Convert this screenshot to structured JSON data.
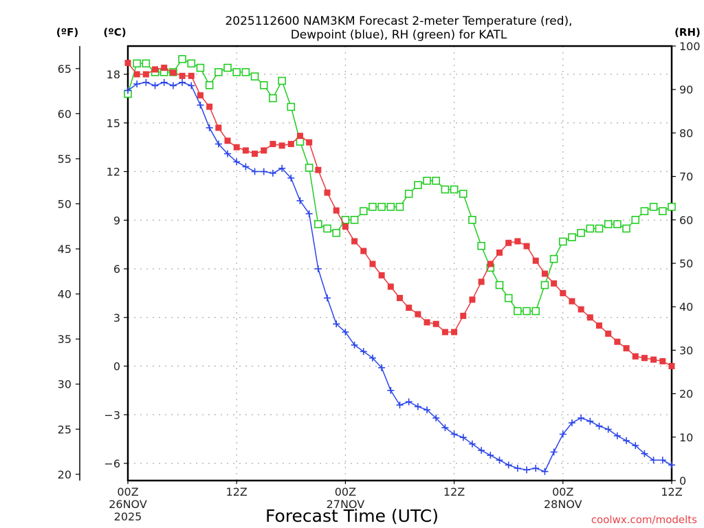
{
  "chart_data": {
    "type": "line",
    "title_line1": "2025112600 NAM3KM Forecast 2-meter Temperature (red),",
    "title_line2": "Dewpoint (blue), RH (green) for KATL",
    "xlabel": "Forecast Time (UTC)",
    "credit": "coolwx.com/modelts",
    "units": {
      "fahrenheit": "(ºF)",
      "celsius": "(ºC)",
      "rh": "(RH)"
    },
    "x_hours_range": [
      0,
      60
    ],
    "x_ticks": [
      {
        "hour": 0,
        "line1": "00Z",
        "line2": "26NOV",
        "line3": "2025"
      },
      {
        "hour": 12,
        "line1": "12Z",
        "line2": "",
        "line3": ""
      },
      {
        "hour": 24,
        "line1": "00Z",
        "line2": "27NOV",
        "line3": ""
      },
      {
        "hour": 36,
        "line1": "12Z",
        "line2": "",
        "line3": ""
      },
      {
        "hour": 48,
        "line1": "00Z",
        "line2": "28NOV",
        "line3": ""
      },
      {
        "hour": 60,
        "line1": "12Z",
        "line2": "",
        "line3": ""
      }
    ],
    "celsius_axis": {
      "range": [
        -7.06,
        19.74
      ],
      "ticks": [
        18,
        15,
        12,
        9,
        6,
        3,
        0,
        -3,
        -6
      ],
      "tick_labels": [
        "18",
        "15",
        "12",
        "9",
        "6",
        "3",
        "0",
        "−3",
        "−6"
      ]
    },
    "fahrenheit_axis": {
      "range": [
        19.3,
        67.5
      ],
      "ticks": [
        65,
        60,
        55,
        50,
        45,
        40,
        35,
        30,
        25,
        20
      ],
      "tick_labels": [
        "65",
        "60",
        "55",
        "50",
        "45",
        "40",
        "35",
        "30",
        "25",
        "20"
      ]
    },
    "rh_axis": {
      "range": [
        0,
        100
      ],
      "ticks": [
        100,
        90,
        80,
        70,
        60,
        50,
        40,
        30,
        20,
        10,
        0
      ],
      "tick_labels": [
        "100",
        "90",
        "80",
        "70",
        "60",
        "50",
        "40",
        "30",
        "20",
        "10",
        "0"
      ]
    },
    "grid": true,
    "colors": {
      "temperature": "#e83a3f",
      "dewpoint": "#2a44e8",
      "rh": "#22cc22"
    },
    "series": [
      {
        "name": "Temperature",
        "unit": "C",
        "axis": "celsius",
        "marker": "filled-square",
        "values": [
          18.7,
          18.0,
          18.0,
          18.3,
          18.4,
          18.1,
          17.9,
          17.9,
          16.7,
          16.0,
          14.7,
          13.9,
          13.5,
          13.3,
          13.1,
          13.3,
          13.7,
          13.6,
          13.7,
          14.2,
          13.8,
          12.1,
          10.7,
          9.6,
          8.6,
          7.7,
          7.1,
          6.3,
          5.6,
          4.9,
          4.2,
          3.6,
          3.2,
          2.7,
          2.6,
          2.1,
          2.1,
          3.1,
          4.1,
          5.2,
          6.3,
          7.0,
          7.6,
          7.7,
          7.4,
          6.5,
          5.7,
          5.1,
          4.5,
          4.0,
          3.5,
          3.0,
          2.5,
          2.0,
          1.5,
          1.1,
          0.6,
          0.5,
          0.4,
          0.3,
          0.0
        ]
      },
      {
        "name": "Dewpoint",
        "unit": "C",
        "axis": "celsius",
        "marker": "plus",
        "values": [
          17.0,
          17.4,
          17.5,
          17.3,
          17.5,
          17.3,
          17.5,
          17.3,
          16.1,
          14.7,
          13.7,
          13.1,
          12.6,
          12.3,
          12.0,
          12.0,
          11.9,
          12.2,
          11.6,
          10.2,
          9.4,
          6.0,
          4.2,
          2.6,
          2.1,
          1.3,
          0.9,
          0.5,
          -0.1,
          -1.5,
          -2.4,
          -2.2,
          -2.5,
          -2.7,
          -3.2,
          -3.8,
          -4.2,
          -4.4,
          -4.8,
          -5.2,
          -5.5,
          -5.8,
          -6.1,
          -6.3,
          -6.4,
          -6.3,
          -6.5,
          -5.3,
          -4.2,
          -3.5,
          -3.2,
          -3.4,
          -3.7,
          -3.9,
          -4.3,
          -4.6,
          -4.9,
          -5.4,
          -5.8,
          -5.8,
          -6.1
        ]
      },
      {
        "name": "RH",
        "unit": "%",
        "axis": "rh",
        "marker": "open-square",
        "values": [
          89,
          96,
          96,
          94,
          94,
          94,
          97,
          96,
          95,
          91,
          94,
          95,
          94,
          94,
          93,
          91,
          88,
          92,
          86,
          78,
          72,
          59,
          58,
          57,
          60,
          60,
          62,
          63,
          63,
          63,
          63,
          66,
          68,
          69,
          69,
          67,
          67,
          66,
          60,
          54,
          49,
          45,
          42,
          39,
          39,
          39,
          45,
          51,
          55,
          56,
          57,
          58,
          58,
          59,
          59,
          58,
          60,
          62,
          63,
          62,
          63
        ]
      }
    ]
  }
}
